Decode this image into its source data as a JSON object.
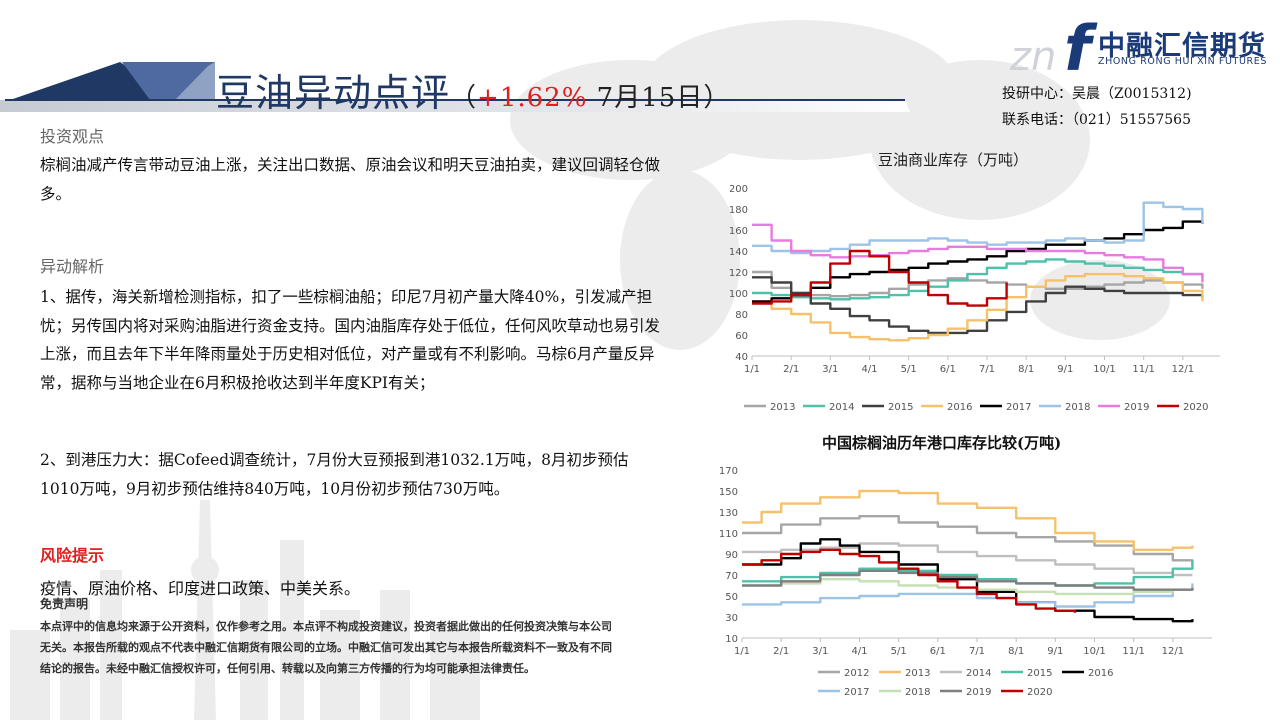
{
  "header": {
    "title": "豆油异动点评",
    "paren_open": "（",
    "change": "+1.62%",
    "date": " 7月15日）"
  },
  "logo": {
    "name": "中融汇信期货",
    "name_en": "ZHONG RONG HUI XIN FUTURES",
    "mark": "f",
    "mark_prefix": "zn"
  },
  "contact": {
    "analyst": "投研中心：吴晨（Z0015312)",
    "phone": "联系电话：（021）51557565"
  },
  "sections": {
    "view_heading": "投资观点",
    "view_text": "棕榈油减产传言带动豆油上涨，关注出口数据、原油会议和明天豆油拍卖，建议回调轻仓做多。",
    "analysis_heading": "异动解析",
    "analysis_p1": "1、据传，海关新增检测指标，扣了一些棕榈油船；印尼7月初产量大降40%，引发减产担忧；另传国内将对采购油脂进行资金支持。国内油脂库存处于低位，任何风吹草动也易引发上涨，而且去年下半年降雨量处于历史相对低位，对产量或有不利影响。马棕6月产量反异常，据称与当地企业在6月积极抢收达到半年度KPI有关；",
    "analysis_p2": "2、到港压力大：据Cofeed调查统计，7月份大豆预报到港1032.1万吨，8月初步预估1010万吨，9月初步预估维持840万吨，10月份初步预估730万吨。",
    "risk_heading": "风险提示",
    "risk_text": "疫情、原油价格、印度进口政策、中美关系。",
    "disclaimer_heading": "免责声明",
    "disclaimer_text": "本点评中的信息均来源于公开资料，仅作参考之用。本点评不构成投资建议，投资者据此做出的任何投资决策与本公司无关。本报告所载的观点不代表中融汇信期货有限公司的立场。中融汇信可发出其它与本报告所载资料不一致及有不同结论的报告。未经中融汇信授权许可，任何引用、转载以及向第三方传播的行为均可能承担法律责任。"
  },
  "chart_data": [
    {
      "type": "line",
      "title": "豆油商业库存（万吨）",
      "x_ticks": [
        "1/1",
        "2/1",
        "3/1",
        "4/1",
        "5/1",
        "6/1",
        "7/1",
        "8/1",
        "9/1",
        "10/1",
        "11/1",
        "12/1"
      ],
      "y_ticks": [
        "40",
        "60",
        "80",
        "100",
        "120",
        "140",
        "160",
        "180",
        "200"
      ],
      "ylim": [
        40,
        200
      ],
      "legend_position": "bottom",
      "series": [
        {
          "name": "2013",
          "color": "#a6a6a6",
          "x": [
            0,
            0.5,
            1,
            1.5,
            2,
            2.5,
            3,
            3.5,
            4,
            4.5,
            5,
            5.5,
            6,
            6.5,
            7,
            7.5,
            8,
            8.5,
            9,
            9.5,
            10,
            10.5,
            11,
            11.5
          ],
          "values": [
            120,
            105,
            100,
            98,
            97,
            98,
            100,
            104,
            108,
            112,
            114,
            112,
            110,
            108,
            106,
            104,
            104,
            106,
            108,
            110,
            112,
            110,
            108,
            104
          ]
        },
        {
          "name": "2014",
          "color": "#4fc1a8",
          "x": [
            0,
            0.5,
            1,
            1.5,
            2,
            2.5,
            3,
            3.5,
            4,
            4.5,
            5,
            5.5,
            6,
            6.5,
            7,
            7.5,
            8,
            8.5,
            9,
            9.5,
            10,
            10.5,
            11,
            11.5
          ],
          "values": [
            100,
            98,
            96,
            95,
            94,
            95,
            96,
            98,
            102,
            106,
            112,
            118,
            124,
            128,
            130,
            132,
            130,
            128,
            126,
            124,
            122,
            120,
            118,
            114
          ]
        },
        {
          "name": "2015",
          "color": "#404040",
          "x": [
            0,
            0.5,
            1,
            1.5,
            2,
            2.5,
            3,
            3.5,
            4,
            4.5,
            5,
            5.5,
            6,
            6.5,
            7,
            7.5,
            8,
            8.5,
            9,
            9.5,
            10,
            10.5,
            11,
            11.5
          ],
          "values": [
            115,
            110,
            100,
            90,
            85,
            78,
            74,
            68,
            64,
            62,
            62,
            64,
            74,
            82,
            92,
            100,
            106,
            104,
            102,
            100,
            100,
            100,
            98,
            95
          ]
        },
        {
          "name": "2016",
          "color": "#f5c26b",
          "x": [
            0,
            0.5,
            1,
            1.5,
            2,
            2.5,
            3,
            3.5,
            4,
            4.5,
            5,
            5.5,
            6,
            6.5,
            7,
            7.5,
            8,
            8.5,
            9,
            9.5,
            10,
            10.5,
            11,
            11.5
          ],
          "values": [
            92,
            85,
            80,
            72,
            62,
            58,
            56,
            55,
            57,
            60,
            66,
            74,
            84,
            96,
            106,
            112,
            116,
            118,
            118,
            116,
            114,
            110,
            102,
            92
          ]
        },
        {
          "name": "2017",
          "color": "#000000",
          "x": [
            0,
            0.5,
            1,
            1.5,
            2,
            2.5,
            3,
            3.5,
            4,
            4.5,
            5,
            5.5,
            6,
            6.5,
            7,
            7.5,
            8,
            8.5,
            9,
            9.5,
            10,
            10.5,
            11,
            11.5
          ],
          "values": [
            92,
            95,
            98,
            105,
            115,
            118,
            120,
            122,
            124,
            128,
            130,
            132,
            135,
            140,
            142,
            146,
            146,
            150,
            152,
            156,
            160,
            162,
            168,
            166
          ]
        },
        {
          "name": "2018",
          "color": "#9dc3e6",
          "x": [
            0,
            0.5,
            1,
            1.5,
            2,
            2.5,
            3,
            3.5,
            4,
            4.5,
            5,
            5.5,
            6,
            6.5,
            7,
            7.5,
            8,
            8.5,
            9,
            9.5,
            10,
            10.5,
            11,
            11.5
          ],
          "values": [
            145,
            140,
            138,
            140,
            142,
            146,
            150,
            150,
            150,
            152,
            150,
            148,
            146,
            148,
            148,
            150,
            152,
            150,
            148,
            150,
            186,
            182,
            180,
            166
          ]
        },
        {
          "name": "2019",
          "color": "#e87ae0",
          "x": [
            0,
            0.5,
            1,
            1.5,
            2,
            2.5,
            3,
            3.5,
            4,
            4.5,
            5,
            5.5,
            6,
            6.5,
            7,
            7.5,
            8,
            8.5,
            9,
            9.5,
            10,
            10.5,
            11,
            11.5
          ],
          "values": [
            165,
            150,
            140,
            136,
            134,
            135,
            136,
            138,
            140,
            142,
            144,
            144,
            142,
            142,
            140,
            140,
            140,
            138,
            136,
            134,
            132,
            124,
            118,
            110
          ]
        },
        {
          "name": "2020",
          "color": "#c00000",
          "x": [
            0,
            0.5,
            1,
            1.5,
            2,
            2.5,
            3,
            3.5,
            4,
            4.5,
            5,
            5.5,
            6,
            6.5
          ],
          "values": [
            90,
            92,
            98,
            110,
            128,
            140,
            135,
            120,
            110,
            98,
            90,
            88,
            95,
            110
          ]
        }
      ]
    },
    {
      "type": "line",
      "title": "中国棕榈油历年港口库存比较(万吨)",
      "x_ticks": [
        "1/1",
        "2/1",
        "3/1",
        "4/1",
        "5/1",
        "6/1",
        "7/1",
        "8/1",
        "9/1",
        "10/1",
        "11/1",
        "12/1"
      ],
      "y_ticks": [
        "10",
        "30",
        "50",
        "70",
        "90",
        "110",
        "130",
        "150",
        "170"
      ],
      "ylim": [
        10,
        170
      ],
      "legend_position": "bottom",
      "series": [
        {
          "name": "2012",
          "color": "#a6a6a6",
          "x": [
            0,
            1,
            2,
            3,
            4,
            5,
            6,
            7,
            8,
            9,
            10,
            11,
            11.5
          ],
          "values": [
            110,
            118,
            124,
            126,
            120,
            116,
            110,
            106,
            102,
            98,
            90,
            84,
            80
          ]
        },
        {
          "name": "2013",
          "color": "#f5c26b",
          "x": [
            0,
            0.5,
            1,
            2,
            3,
            4,
            5,
            6,
            7,
            8,
            9,
            10,
            11,
            11.5
          ],
          "values": [
            120,
            130,
            138,
            144,
            150,
            148,
            138,
            134,
            124,
            110,
            102,
            94,
            96,
            98
          ]
        },
        {
          "name": "2014",
          "color": "#bfbfbf",
          "x": [
            0,
            1,
            2,
            3,
            4,
            5,
            6,
            7,
            8,
            9,
            10,
            11,
            11.5
          ],
          "values": [
            92,
            94,
            96,
            100,
            98,
            92,
            88,
            84,
            80,
            76,
            72,
            70,
            70
          ]
        },
        {
          "name": "2015",
          "color": "#4fc1a8",
          "x": [
            0,
            1,
            2,
            3,
            4,
            5,
            6,
            7,
            8,
            9,
            10,
            11,
            11.5
          ],
          "values": [
            64,
            68,
            72,
            76,
            74,
            70,
            66,
            62,
            60,
            62,
            68,
            76,
            84
          ]
        },
        {
          "name": "2016",
          "color": "#000000",
          "x": [
            0,
            1,
            1.5,
            2,
            2.5,
            3,
            4,
            5,
            6,
            7,
            8,
            9,
            10,
            11,
            11.5
          ],
          "values": [
            80,
            86,
            100,
            104,
            98,
            92,
            80,
            66,
            54,
            44,
            36,
            30,
            28,
            26,
            28
          ]
        },
        {
          "name": "2017",
          "color": "#9dc3e6",
          "x": [
            0,
            1,
            2,
            3,
            4,
            5,
            6,
            7,
            8,
            9,
            10,
            11,
            11.5
          ],
          "values": [
            42,
            44,
            48,
            50,
            52,
            52,
            48,
            44,
            40,
            44,
            50,
            56,
            62
          ]
        },
        {
          "name": "2018",
          "color": "#c5e0b4",
          "x": [
            0,
            1,
            2,
            3,
            4,
            5,
            6,
            7,
            8,
            9,
            10,
            11,
            11.5
          ],
          "values": [
            60,
            62,
            66,
            64,
            60,
            58,
            56,
            54,
            52,
            52,
            54,
            56,
            58
          ]
        },
        {
          "name": "2019",
          "color": "#7f7f7f",
          "x": [
            0,
            1,
            2,
            3,
            4,
            5,
            6,
            7,
            8,
            9,
            10,
            11,
            11.5
          ],
          "values": [
            60,
            64,
            70,
            74,
            72,
            68,
            64,
            62,
            60,
            58,
            56,
            56,
            58
          ]
        },
        {
          "name": "2020",
          "color": "#c00000",
          "x": [
            0,
            0.5,
            1,
            1.5,
            2,
            2.5,
            3,
            3.5,
            4,
            4.5,
            5,
            5.5,
            6,
            6.5,
            7,
            7.5,
            8,
            8.5
          ],
          "values": [
            80,
            84,
            90,
            92,
            94,
            90,
            88,
            82,
            76,
            70,
            64,
            58,
            52,
            48,
            42,
            38,
            36,
            34
          ]
        }
      ]
    }
  ]
}
